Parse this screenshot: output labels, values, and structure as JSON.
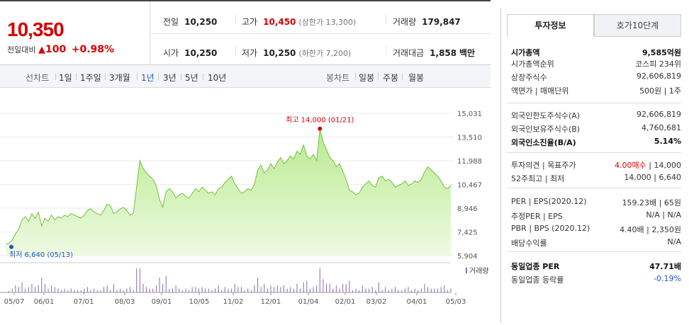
{
  "summary": {
    "price": "10,350",
    "change_label": "전일대비",
    "change_arrow": "▲",
    "change": "100",
    "change_pct": "+0.98%",
    "prev_close": {
      "label": "전일",
      "value": "10,250"
    },
    "open": {
      "label": "시가",
      "value": "10,250"
    },
    "high": {
      "label": "고가",
      "value": "10,450",
      "sub": "(상한가 13,300)"
    },
    "low": {
      "label": "저가",
      "value": "10,250",
      "sub": "(하한가 7,200)"
    },
    "volume": {
      "label": "거래량",
      "value": "179,847"
    },
    "amount": {
      "label": "거래대금",
      "value": "1,858",
      "unit": "백만"
    }
  },
  "toolbar": {
    "line_head": "선차트",
    "line_items": [
      "1일",
      "1주일",
      "3개월",
      "1년",
      "3년",
      "5년",
      "10년"
    ],
    "line_active": "1년",
    "candle_head": "봉차트",
    "candle_items": [
      "일봉",
      "주봉",
      "월봉"
    ]
  },
  "chart_data": {
    "type": "area",
    "y_ticks": [
      "15,031",
      "13,510",
      "11,988",
      "10,467",
      "8,946",
      "7,425",
      "5,904"
    ],
    "ylim": [
      5904,
      15031
    ],
    "x_ticks": [
      "05/07",
      "06/01",
      "07/01",
      "08/03",
      "09/01",
      "10/05",
      "11/02",
      "12/01",
      "01/04",
      "02/01",
      "03/02",
      "04/01",
      "05/03"
    ],
    "max_label": "최고 14,000 (01/21)",
    "min_label": "최저 6,640 (05/13)",
    "volume_legend": "거래량",
    "accent": "#7ccf3c",
    "values": [
      6640,
      6700,
      6900,
      7300,
      7600,
      8200,
      8400,
      8100,
      8600,
      8300,
      8700,
      7800,
      8300,
      8100,
      8500,
      8200,
      8400,
      8300,
      8500,
      8400,
      8600,
      8500,
      8400,
      8300,
      8500,
      8800,
      8900,
      8700,
      8600,
      8500,
      8800,
      9200,
      9100,
      8600,
      8700,
      8900,
      9000,
      8800,
      8500,
      8600,
      10300,
      12000,
      11500,
      11200,
      11000,
      10800,
      10400,
      9500,
      9000,
      10000,
      10200,
      10000,
      9600,
      9800,
      9900,
      9700,
      9600,
      9900,
      10200,
      10000,
      10300,
      10100,
      9900,
      10000,
      9800,
      10200,
      10300,
      10600,
      10800,
      11000,
      10500,
      10200,
      9900,
      10000,
      10200,
      10100,
      10500,
      11400,
      11700,
      11200,
      11400,
      11800,
      11500,
      11900,
      12200,
      11800,
      12000,
      12300,
      12100,
      12600,
      12400,
      13000,
      12300,
      12100,
      12400,
      12000,
      14000,
      13200,
      12700,
      12200,
      12000,
      11600,
      11800,
      11300,
      10800,
      10100,
      10000,
      9800,
      9900,
      10300,
      10500,
      10700,
      10400,
      10300,
      10900,
      11000,
      10700,
      10800,
      10600,
      10300,
      10400,
      10500,
      10700,
      10400,
      10500,
      10700,
      10600,
      10800,
      11300,
      11600,
      11400,
      11200,
      11000,
      10700,
      10300,
      10200,
      10400
    ]
  },
  "panel": {
    "tabs": [
      "투자정보",
      "호가10단계"
    ],
    "rows": [
      {
        "k": "시가총액",
        "v": "9,585억원",
        "bold": true
      },
      {
        "k": "시가총액순위",
        "v": "코스피 234위"
      },
      {
        "k": "상장주식수",
        "v": "92,606,819"
      },
      {
        "k": "액면가 | 매매단위",
        "v": "500원 | 1주"
      },
      {
        "k": "외국인한도주식수(A)",
        "v": "92,606,819"
      },
      {
        "k": "외국인보유주식수(B)",
        "v": "4,760,681"
      },
      {
        "k": "외국인소진율(B/A)",
        "v": "5.14%",
        "bold": true
      },
      {
        "k": "투자의견 | 목표주가",
        "v_red": "4.00매수",
        "v": " | 14,000"
      },
      {
        "k": "52주최고 | 최저",
        "v": "14,000 | 6,640"
      },
      {
        "k": "PER | EPS(2020.12)",
        "v": "159.23배 | 65원"
      },
      {
        "k": "추정PER | EPS",
        "v": "N/A | N/A"
      },
      {
        "k": "PBR | BPS (2020.12)",
        "v": "4.40배 | 2,350원"
      },
      {
        "k": "배당수익률",
        "v": "N/A"
      },
      {
        "k": "동일업종 PER",
        "v": "47.71배",
        "bold": true
      },
      {
        "k": "동일업종 등락률",
        "v_blue": "-0.19%"
      }
    ]
  }
}
